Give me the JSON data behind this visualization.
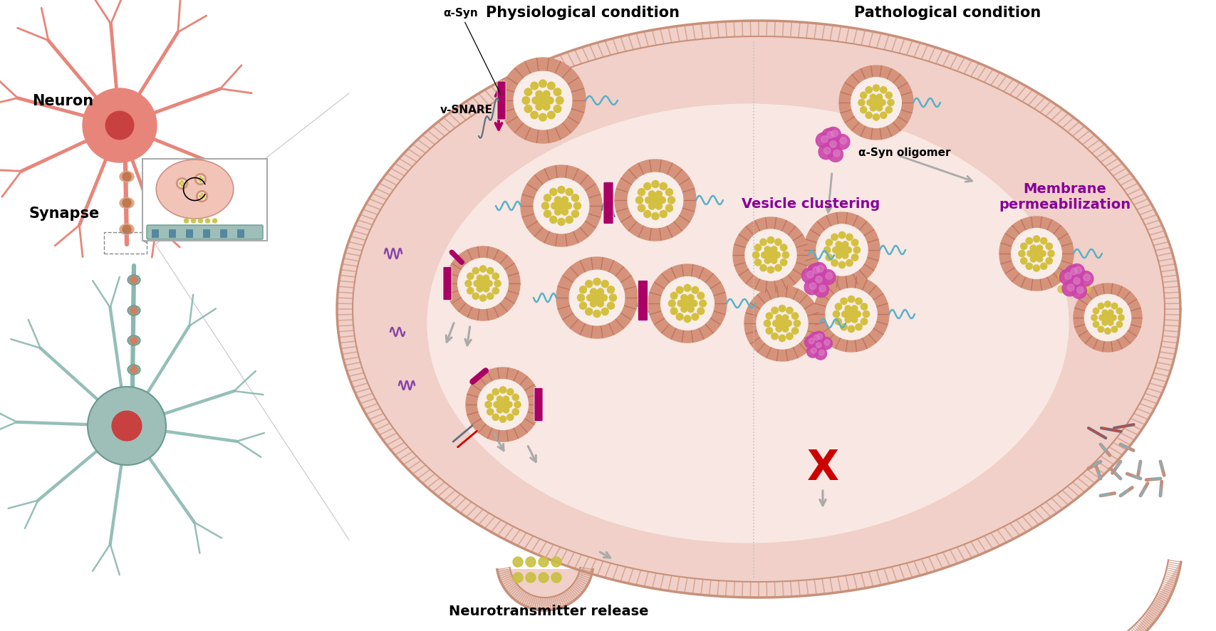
{
  "bg": "#ffffff",
  "fw": 17.07,
  "fh": 8.86,
  "neuron_pink": "#e8857a",
  "neuron_teal": "#9dbfb8",
  "teal_dark": "#6a9990",
  "nucleus_red": "#c94040",
  "vesicle_outer": "#d4937a",
  "vesicle_inner": "#f8ede8",
  "vesicle_dot": "#d4c040",
  "snare_mag": "#aa0066",
  "oligomer_purple": "#cc44aa",
  "oligomer_light": "#dd88cc",
  "mem_border": "#c8907a",
  "blob_fill": "#f0d0c8",
  "blob_inner": "#faeae6",
  "wavy_blue": "#5ab0c8",
  "arrow_grey": "#aaaaaa",
  "x_red": "#cc0000",
  "purple_label": "#880099",
  "myelin_c": "#e0a888",
  "myelin_i": "#c07850",
  "snare_grey": "#607080",
  "squig_purple": "#8844aa",
  "frag_pink": "#c09080",
  "synapse_pink": "#f2c4b8",
  "label_phys": "Physiological condition",
  "label_path": "Pathological condition",
  "label_asyn": "α-Syn",
  "label_vsnare": "v-SNARE",
  "label_neurotrans": "Neurotransmitter release",
  "label_vesclust": "Vesicle clustering",
  "label_membperm": "Membrane\npermeabilization",
  "label_oligomer": "α-Syn oligomer",
  "label_neuron": "Neuron",
  "label_synapse": "Synapse"
}
